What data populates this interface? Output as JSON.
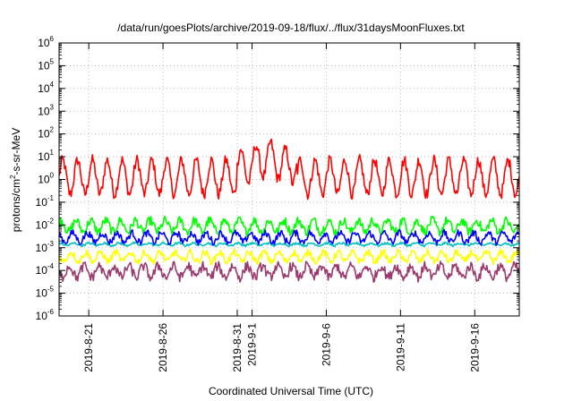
{
  "chart_data": {
    "type": "line",
    "title": "/data/run/goesPlots/archive/2019-09-18/flux/../flux/31daysMoonFluxes.txt",
    "xlabel": "Coordinated Universal Time (UTC)",
    "ylabel": {
      "before": "protons/cm",
      "superscript": "2",
      "after": "-s-sr-MeV"
    },
    "yscale": "log",
    "ylim_exponents": [
      -6,
      6
    ],
    "y_tick_base": "10",
    "y_tick_exponents": [
      "-6",
      "-5",
      "-4",
      "-3",
      "-2",
      "-1",
      "0",
      "1",
      "2",
      "3",
      "4",
      "5",
      "6"
    ],
    "xlim": [
      "2019-08-19",
      "2019-09-19"
    ],
    "x_ticks": [
      {
        "date": "2019-08-21",
        "label": "2019-8-21"
      },
      {
        "date": "2019-08-26",
        "label": "2019-8-26"
      },
      {
        "date": "2019-08-31",
        "label": "2019-8-31"
      },
      {
        "date": "2019-09-01",
        "label": "2019-9-1"
      },
      {
        "date": "2019-09-06",
        "label": "2019-9-6"
      },
      {
        "date": "2019-09-11",
        "label": "2019-9-11"
      },
      {
        "date": "2019-09-16",
        "label": "2019-9-16"
      }
    ],
    "grid": true,
    "grid_style": "dotted",
    "legend": "none",
    "series": [
      {
        "color": "#ff0000",
        "baseline_log10": 0.1,
        "daily_amplitude_log10": 0.75,
        "noise_log10": 0.25,
        "enhanced_window": [
          "2019-08-31",
          "2019-09-04"
        ],
        "enhanced_baseline_log10": 0.9
      },
      {
        "color": "#00ff00",
        "baseline_log10": -2.05,
        "daily_amplitude_log10": 0.25,
        "noise_log10": 0.2
      },
      {
        "color": "#00c0c0",
        "baseline_log10": -2.85,
        "daily_amplitude_log10": 0.05,
        "noise_log10": 0.05
      },
      {
        "color": "#0000ff",
        "baseline_log10": -2.55,
        "daily_amplitude_log10": 0.2,
        "noise_log10": 0.15
      },
      {
        "color": "#ffff00",
        "baseline_log10": -3.4,
        "daily_amplitude_log10": 0.2,
        "noise_log10": 0.15
      },
      {
        "color": "#9b3a6e",
        "baseline_log10": -4.05,
        "daily_amplitude_log10": 0.25,
        "noise_log10": 0.22
      }
    ]
  }
}
